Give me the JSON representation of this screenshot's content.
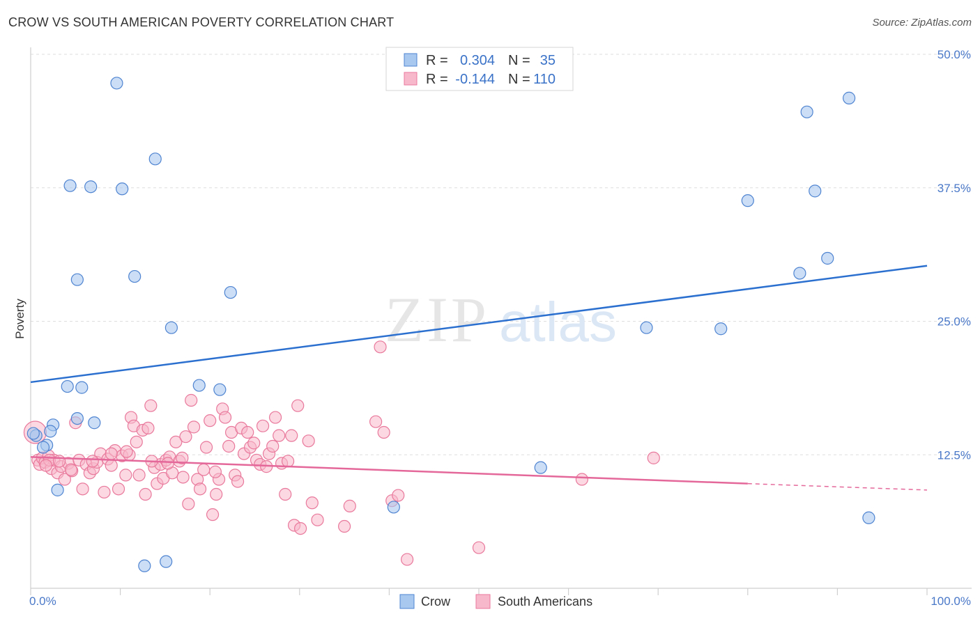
{
  "header": {
    "title": "CROW VS SOUTH AMERICAN POVERTY CORRELATION CHART",
    "source": "Source: ZipAtlas.com"
  },
  "watermark": {
    "zip": "ZIP",
    "atlas": "atlas"
  },
  "legend": {
    "rows": [
      {
        "r_label": "R =",
        "r_value": "0.304",
        "n_label": "N =",
        "n_value": "35"
      },
      {
        "r_label": "R =",
        "r_value": "-0.144",
        "n_label": "N =",
        "n_value": "110"
      }
    ]
  },
  "bottom_legend": [
    "Crow",
    "South Americans"
  ],
  "colors": {
    "crow_fill": "#a9c8ef",
    "crow_stroke": "#4f84d1",
    "crow_line": "#2b6fcf",
    "sa_fill": "#f7b8cb",
    "sa_stroke": "#e9799c",
    "sa_line": "#e4689a",
    "tick_text": "#4a78c8",
    "grid": "#dddddd"
  },
  "chart_data": {
    "type": "scatter",
    "title": "CROW VS SOUTH AMERICAN POVERTY CORRELATION CHART",
    "xlabel": "",
    "ylabel": "Poverty",
    "xlim": [
      0,
      100
    ],
    "ylim": [
      0,
      50
    ],
    "x_tick_labels": [
      "0.0%",
      "100.0%"
    ],
    "y_ticks": [
      12.5,
      25.0,
      37.5,
      50.0
    ],
    "y_tick_labels": [
      "12.5%",
      "25.0%",
      "37.5%",
      "50.0%"
    ],
    "grid": true,
    "legend_position": "top-center",
    "series": [
      {
        "name": "Crow",
        "r": 0.304,
        "n": 35,
        "trend": {
          "x": [
            0,
            100
          ],
          "y": [
            19.3,
            30.2
          ]
        },
        "points": [
          [
            9.6,
            47.3
          ],
          [
            13.9,
            40.2
          ],
          [
            4.4,
            37.7
          ],
          [
            6.7,
            37.6
          ],
          [
            10.2,
            37.4
          ],
          [
            5.2,
            28.9
          ],
          [
            11.6,
            29.2
          ],
          [
            15.7,
            24.4
          ],
          [
            22.3,
            27.7
          ],
          [
            5.7,
            18.8
          ],
          [
            4.1,
            18.9
          ],
          [
            18.8,
            19.0
          ],
          [
            21.1,
            18.6
          ],
          [
            5.2,
            15.9
          ],
          [
            7.1,
            15.5
          ],
          [
            2.5,
            15.3
          ],
          [
            2.2,
            14.7
          ],
          [
            0.6,
            14.3
          ],
          [
            1.8,
            13.4
          ],
          [
            3.0,
            9.2
          ],
          [
            12.7,
            2.1
          ],
          [
            15.1,
            2.5
          ],
          [
            40.5,
            7.6
          ],
          [
            56.9,
            11.3
          ],
          [
            68.7,
            24.4
          ],
          [
            77.0,
            24.3
          ],
          [
            80.0,
            36.3
          ],
          [
            86.6,
            44.6
          ],
          [
            91.3,
            45.9
          ],
          [
            87.5,
            37.2
          ],
          [
            88.9,
            30.9
          ],
          [
            85.8,
            29.5
          ],
          [
            93.5,
            6.6
          ],
          [
            0.3,
            14.5
          ],
          [
            1.4,
            13.2
          ]
        ]
      },
      {
        "name": "South Americans",
        "r": -0.144,
        "n": 110,
        "trend": {
          "x": [
            0,
            80
          ],
          "y": [
            12.3,
            9.8
          ]
        },
        "trend_dashed": {
          "x": [
            80,
            100
          ],
          "y": [
            9.8,
            9.2
          ]
        },
        "points": [
          [
            0.5,
            14.6
          ],
          [
            0.8,
            12.0
          ],
          [
            1.0,
            11.6
          ],
          [
            1.3,
            12.2
          ],
          [
            1.6,
            11.8
          ],
          [
            2.0,
            12.4
          ],
          [
            2.3,
            11.2
          ],
          [
            2.6,
            12.0
          ],
          [
            3.0,
            10.8
          ],
          [
            3.4,
            11.4
          ],
          [
            3.8,
            10.2
          ],
          [
            4.2,
            11.7
          ],
          [
            4.6,
            11.0
          ],
          [
            5.0,
            15.5
          ],
          [
            5.4,
            12.0
          ],
          [
            5.8,
            9.3
          ],
          [
            6.2,
            11.6
          ],
          [
            6.6,
            10.8
          ],
          [
            7.0,
            11.2
          ],
          [
            7.4,
            11.8
          ],
          [
            7.8,
            12.6
          ],
          [
            8.2,
            9.0
          ],
          [
            8.6,
            12.1
          ],
          [
            9.0,
            11.5
          ],
          [
            9.4,
            12.9
          ],
          [
            9.8,
            9.3
          ],
          [
            10.2,
            12.4
          ],
          [
            10.6,
            10.6
          ],
          [
            11.0,
            12.5
          ],
          [
            11.2,
            16.0
          ],
          [
            11.5,
            15.2
          ],
          [
            11.8,
            13.7
          ],
          [
            12.1,
            10.6
          ],
          [
            12.5,
            14.8
          ],
          [
            12.8,
            8.8
          ],
          [
            13.1,
            15.0
          ],
          [
            13.4,
            17.1
          ],
          [
            13.8,
            11.3
          ],
          [
            14.1,
            9.8
          ],
          [
            14.5,
            11.6
          ],
          [
            14.8,
            10.3
          ],
          [
            15.1,
            12.0
          ],
          [
            15.5,
            12.3
          ],
          [
            15.8,
            10.8
          ],
          [
            16.2,
            13.7
          ],
          [
            16.6,
            11.9
          ],
          [
            17.0,
            10.4
          ],
          [
            17.3,
            14.2
          ],
          [
            17.6,
            7.9
          ],
          [
            17.9,
            17.6
          ],
          [
            18.2,
            15.1
          ],
          [
            18.6,
            10.2
          ],
          [
            18.9,
            9.3
          ],
          [
            19.3,
            11.1
          ],
          [
            19.6,
            13.2
          ],
          [
            20.0,
            15.7
          ],
          [
            20.3,
            6.9
          ],
          [
            20.7,
            8.8
          ],
          [
            21.0,
            10.2
          ],
          [
            21.4,
            16.8
          ],
          [
            21.7,
            16.0
          ],
          [
            22.1,
            13.3
          ],
          [
            22.4,
            14.6
          ],
          [
            22.8,
            10.6
          ],
          [
            23.1,
            10.0
          ],
          [
            23.5,
            15.0
          ],
          [
            23.8,
            12.6
          ],
          [
            24.2,
            14.6
          ],
          [
            24.5,
            13.2
          ],
          [
            24.9,
            13.6
          ],
          [
            25.2,
            12.0
          ],
          [
            25.6,
            11.6
          ],
          [
            25.9,
            15.2
          ],
          [
            26.3,
            11.4
          ],
          [
            26.6,
            12.6
          ],
          [
            27.0,
            13.3
          ],
          [
            27.3,
            16.0
          ],
          [
            27.7,
            14.3
          ],
          [
            28.0,
            11.7
          ],
          [
            28.4,
            8.8
          ],
          [
            28.7,
            11.9
          ],
          [
            29.1,
            14.3
          ],
          [
            29.4,
            5.9
          ],
          [
            29.8,
            17.1
          ],
          [
            30.1,
            5.6
          ],
          [
            31.0,
            13.8
          ],
          [
            31.4,
            8.0
          ],
          [
            32.0,
            6.4
          ],
          [
            35.0,
            5.8
          ],
          [
            35.6,
            7.7
          ],
          [
            38.5,
            15.6
          ],
          [
            39.0,
            22.6
          ],
          [
            39.4,
            14.6
          ],
          [
            40.3,
            8.2
          ],
          [
            41.0,
            8.7
          ],
          [
            42.0,
            2.7
          ],
          [
            50.0,
            3.8
          ],
          [
            61.5,
            10.2
          ],
          [
            69.5,
            12.2
          ],
          [
            2.1,
            12.0
          ],
          [
            1.7,
            11.5
          ],
          [
            3.2,
            11.9
          ],
          [
            4.5,
            11.1
          ],
          [
            6.9,
            11.9
          ],
          [
            9.0,
            12.6
          ],
          [
            10.7,
            12.8
          ],
          [
            13.5,
            11.9
          ],
          [
            15.3,
            11.7
          ],
          [
            16.9,
            12.2
          ],
          [
            20.6,
            10.9
          ]
        ]
      }
    ]
  }
}
